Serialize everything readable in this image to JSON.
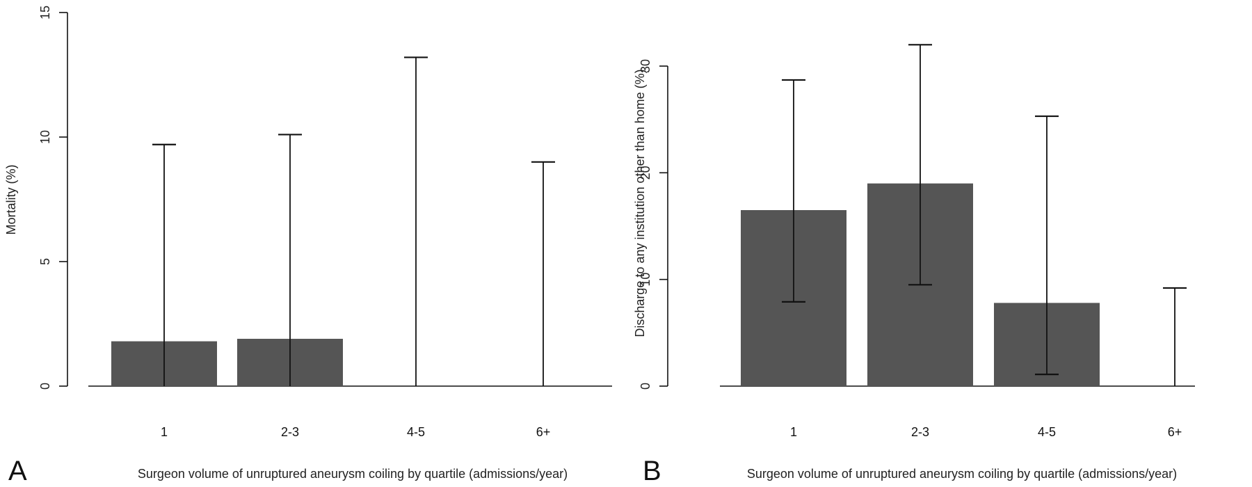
{
  "chart_data": [
    {
      "type": "bar",
      "panel_label": "A",
      "title": "",
      "categories": [
        "1",
        "2-3",
        "4-5",
        "6+"
      ],
      "values": [
        1.8,
        1.9,
        0,
        0
      ],
      "error_low": [
        0,
        0,
        0,
        0
      ],
      "error_high": [
        9.7,
        10.1,
        13.2,
        9.0
      ],
      "xlabel": "Surgeon volume of unruptured aneurysm coiling by quartile (admissions/year)",
      "ylabel": "Mortality (%)",
      "ylim": [
        0,
        15
      ],
      "yticks": [
        0,
        5,
        10,
        15
      ],
      "grid": false,
      "bar_color": "#555555"
    },
    {
      "type": "bar",
      "panel_label": "B",
      "title": "",
      "categories": [
        "1",
        "2-3",
        "4-5",
        "6+"
      ],
      "values": [
        16.5,
        19.0,
        7.8,
        0
      ],
      "error_low": [
        7.9,
        9.5,
        1.1,
        0
      ],
      "error_high": [
        28.7,
        32.0,
        25.3,
        9.2
      ],
      "xlabel": "Surgeon volume of unruptured aneurysm coiling by quartile (admissions/year)",
      "ylabel": "Discharge to any institution other than home (%)",
      "ylim": [
        0,
        30
      ],
      "yticks": [
        0,
        10,
        20,
        30
      ],
      "grid": false,
      "bar_color": "#555555"
    }
  ]
}
